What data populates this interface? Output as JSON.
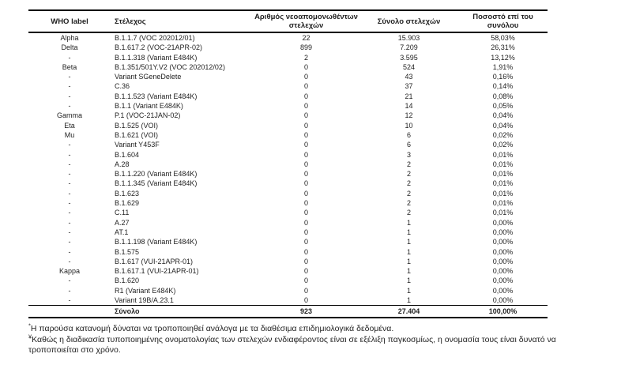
{
  "table": {
    "columns": [
      "WHO label",
      "Στέλεχος",
      "Αριθμός νεοαπομονωθέντων στελεχών",
      "Σύνολο στελεχών",
      "Ποσοστό επί του συνόλου"
    ],
    "rows": [
      [
        "Alpha",
        "B.1.1.7 (VOC 202012/01)",
        "22",
        "15.903",
        "58,03%"
      ],
      [
        "Delta",
        "B.1.617.2 (VOC-21APR-02)",
        "899",
        "7.209",
        "26,31%"
      ],
      [
        "-",
        "B.1.1.318 (Variant E484K)",
        "2",
        "3.595",
        "13,12%"
      ],
      [
        "Beta",
        "B.1.351/501Y.V2 (VOC 202012/02)",
        "0",
        "524",
        "1,91%"
      ],
      [
        "-",
        "Variant SGeneDelete",
        "0",
        "43",
        "0,16%"
      ],
      [
        "-",
        "C.36",
        "0",
        "37",
        "0,14%"
      ],
      [
        "-",
        "B.1.1.523 (Variant E484K)",
        "0",
        "21",
        "0,08%"
      ],
      [
        "-",
        "B.1.1 (Variant E484K)",
        "0",
        "14",
        "0,05%"
      ],
      [
        "Gamma",
        "P.1 (VOC-21JAN-02)",
        "0",
        "12",
        "0,04%"
      ],
      [
        "Eta",
        "B.1.525 (VOI)",
        "0",
        "10",
        "0,04%"
      ],
      [
        "Mu",
        "B.1.621 (VOI)",
        "0",
        "6",
        "0,02%"
      ],
      [
        "-",
        "Variant Y453F",
        "0",
        "6",
        "0,02%"
      ],
      [
        "-",
        "B.1.604",
        "0",
        "3",
        "0,01%"
      ],
      [
        "-",
        "A.28",
        "0",
        "2",
        "0,01%"
      ],
      [
        "-",
        "B.1.1.220 (Variant E484K)",
        "0",
        "2",
        "0,01%"
      ],
      [
        "-",
        "B.1.1.345 (Variant E484K)",
        "0",
        "2",
        "0,01%"
      ],
      [
        "-",
        "B.1.623",
        "0",
        "2",
        "0,01%"
      ],
      [
        "-",
        "B.1.629",
        "0",
        "2",
        "0,01%"
      ],
      [
        "-",
        "C.11",
        "0",
        "2",
        "0,01%"
      ],
      [
        "-",
        "A.27",
        "0",
        "1",
        "0,00%"
      ],
      [
        "-",
        "AT.1",
        "0",
        "1",
        "0,00%"
      ],
      [
        "-",
        "B.1.1.198 (Variant E484K)",
        "0",
        "1",
        "0,00%"
      ],
      [
        "-",
        "B.1.575",
        "0",
        "1",
        "0,00%"
      ],
      [
        "-",
        "B.1.617 (VUI-21APR-01)",
        "0",
        "1",
        "0,00%"
      ],
      [
        "Kappa",
        "B.1.617.1 (VUI-21APR-01)",
        "0",
        "1",
        "0,00%"
      ],
      [
        "-",
        "B.1.620",
        "0",
        "1",
        "0,00%"
      ],
      [
        "-",
        "R1 (Variant E484K)",
        "0",
        "1",
        "0,00%"
      ],
      [
        "-",
        "Variant 19B/A.23.1",
        "0",
        "1",
        "0,00%"
      ]
    ],
    "total": {
      "label": "Σύνολο",
      "new_isolates": "923",
      "total_strains": "27.404",
      "percent": "100,00%"
    }
  },
  "footnotes": [
    {
      "marker": "*",
      "text": "Η παρούσα κατανομή δύναται να τροποποιηθεί ανάλογα με τα διαθέσιμα επιδημιολογικά δεδομένα."
    },
    {
      "marker": "¥",
      "text": "Καθώς η διαδικασία τυποποιημένης ονοματολογίας των στελεχών ενδιαφέροντος είναι σε εξέλιξη παγκοσμίως, η ονομασία τους είναι δυνατό να τροποποιείται στο χρόνο."
    }
  ]
}
